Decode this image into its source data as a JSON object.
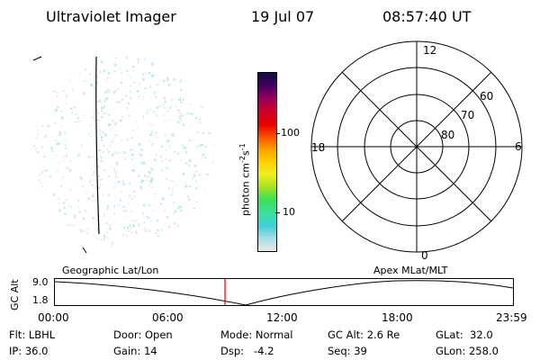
{
  "header": {
    "instrument": "Ultraviolet Imager",
    "date": "19 Jul 07",
    "time": "08:57:40 UT"
  },
  "colorbar": {
    "label": "photon cm",
    "label_sup1": "-2",
    "label_mid": "s",
    "label_sup2": "-1",
    "tick_100": "100",
    "tick_10": "10",
    "colors": [
      "#e8e8e8",
      "#a8dfe8",
      "#3fd0d8",
      "#38e0a0",
      "#40e050",
      "#a8e020",
      "#f0f020",
      "#ffd000",
      "#ffa000",
      "#ff5000",
      "#e80000",
      "#c80030",
      "#900060",
      "#400060",
      "#101040"
    ]
  },
  "polar": {
    "mlt_12": "12",
    "mlt_18": "18",
    "mlt_6": "6",
    "mlt_0": "0",
    "lat_60": "60",
    "lat_70": "70",
    "lat_80": "80"
  },
  "timeline": {
    "left_label": "Geographic Lat/Lon",
    "right_label": "Apex MLat/MLT",
    "yaxis_title": "GC Alt",
    "y_top": "9.0",
    "y_bottom": "1.8",
    "x_ticks": [
      "00:00",
      "06:00",
      "12:00",
      "18:00",
      "23:59"
    ],
    "marker_color": "#e00000"
  },
  "status": {
    "flt": "Flt: LBHL",
    "ip": "IP: 36.0",
    "door": "Door: Open",
    "gain": "Gain: 14",
    "mode": "Mode: Normal",
    "dsp": "Dsp:   -4.2",
    "gc_alt": "GC Alt: 2.6 Re",
    "seq": "Seq: 39",
    "glat": "GLat:  32.0",
    "glon": "GLon: 258.0"
  }
}
